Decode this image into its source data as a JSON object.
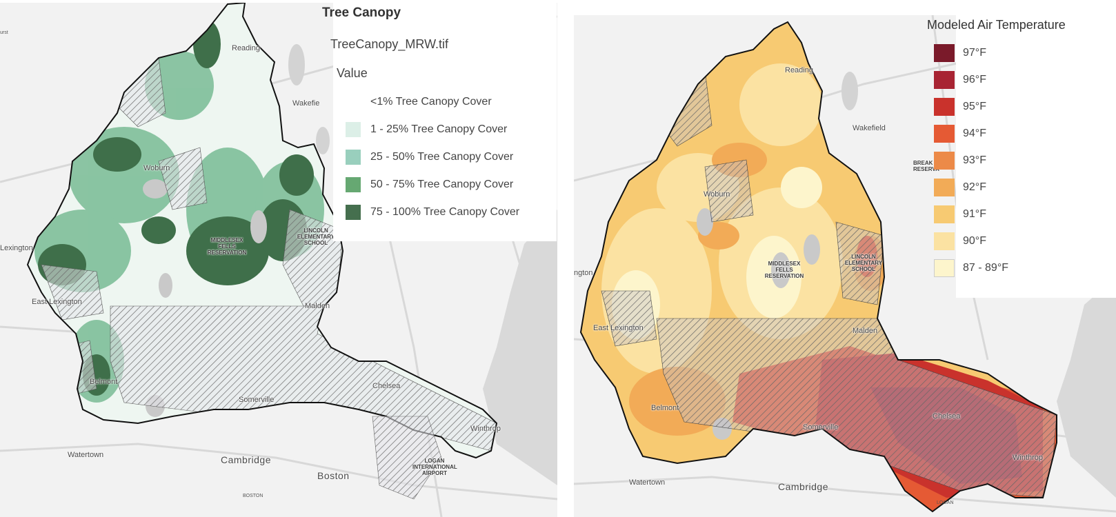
{
  "left_map": {
    "legend": {
      "title": "Tree Canopy",
      "layer": "TreeCanopy_MRW.tif",
      "field": "Value",
      "classes": [
        {
          "label": "<1% Tree Canopy Cover",
          "color": "#ffffff"
        },
        {
          "label": "1 - 25% Tree Canopy Cover",
          "color": "#dcefe7"
        },
        {
          "label": "25 - 50% Tree Canopy Cover",
          "color": "#99cfbd"
        },
        {
          "label": "50 - 75% Tree Canopy Cover",
          "color": "#66a872"
        },
        {
          "label": "75 - 100% Tree Canopy Cover",
          "color": "#456f4e"
        }
      ]
    },
    "labels": {
      "reading": "Reading",
      "wakefield": "Wakefie",
      "woburn": "Woburn",
      "lexington": "Lexington",
      "east_lexington": "East Lexington",
      "malden": "Malden",
      "belmont": "Belmont",
      "somerville": "Somerville",
      "chelsea": "Chelsea",
      "winthrop": "Winthrop",
      "watertown": "Watertown",
      "cambridge": "Cambridge",
      "boston": "Boston",
      "boston_road": "BOSTON",
      "middlesex": "MIDDLESEX FELLS RESERVATION",
      "lincoln": "LINCOLN ELEMENTARY SCHOOL",
      "logan": "LOGAN INTERNATIONAL AIRPORT",
      "hurst": "urst"
    }
  },
  "right_map": {
    "legend": {
      "title": "Modeled Air Temperature",
      "classes": [
        {
          "label": "97°F",
          "color": "#7a1a2a"
        },
        {
          "label": "96°F",
          "color": "#a82433"
        },
        {
          "label": "95°F",
          "color": "#c9322c"
        },
        {
          "label": "94°F",
          "color": "#e55a34"
        },
        {
          "label": "93°F",
          "color": "#ec8a48"
        },
        {
          "label": "92°F",
          "color": "#f2ab57"
        },
        {
          "label": "91°F",
          "color": "#f7ca72"
        },
        {
          "label": "90°F",
          "color": "#fbe2a2"
        },
        {
          "label": "87 - 89°F",
          "color": "#fdf5cc"
        }
      ]
    },
    "labels": {
      "reading": "Reading",
      "wakefield": "Wakefield",
      "woburn": "Woburn",
      "lexington": "ngton",
      "east_lexington": "East Lexington",
      "malden": "Malden",
      "belmont": "Belmont",
      "somerville": "Somerville",
      "chelsea": "Chelsea",
      "winthrop": "Winthrop",
      "watertown": "Watertown",
      "cambridge": "Cambridge",
      "logan": "LOGAN",
      "middlesex": "MIDDLESEX FELLS RESERVATION",
      "lincoln": "LINCOLN ELEMENTARY SCHOOL",
      "breakheart": "BREAK RESERVA"
    }
  }
}
